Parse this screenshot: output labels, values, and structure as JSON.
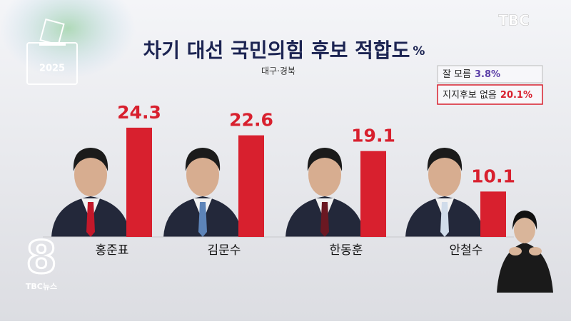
{
  "chart_data": {
    "type": "bar",
    "title": "차기 대선 국민의힘 후보 적합도",
    "unit": "%",
    "subtitle": "대구·경북",
    "categories": [
      "홍준표",
      "김문수",
      "한동훈",
      "안철수"
    ],
    "values": [
      24.3,
      22.6,
      19.1,
      10.1
    ],
    "color": "#d8202e",
    "notes": {
      "categories": [
        "잘 모름",
        "지지후보 없음"
      ],
      "values": [
        3.8,
        20.1
      ],
      "value_labels": [
        "3.8%",
        "20.1%"
      ],
      "colors": [
        "#5b3fa8",
        "#d8202e"
      ]
    }
  },
  "broadcast": {
    "logo": "TBC",
    "program_number": "8",
    "program_name": "TBC뉴스",
    "ballot_year": "2025"
  }
}
